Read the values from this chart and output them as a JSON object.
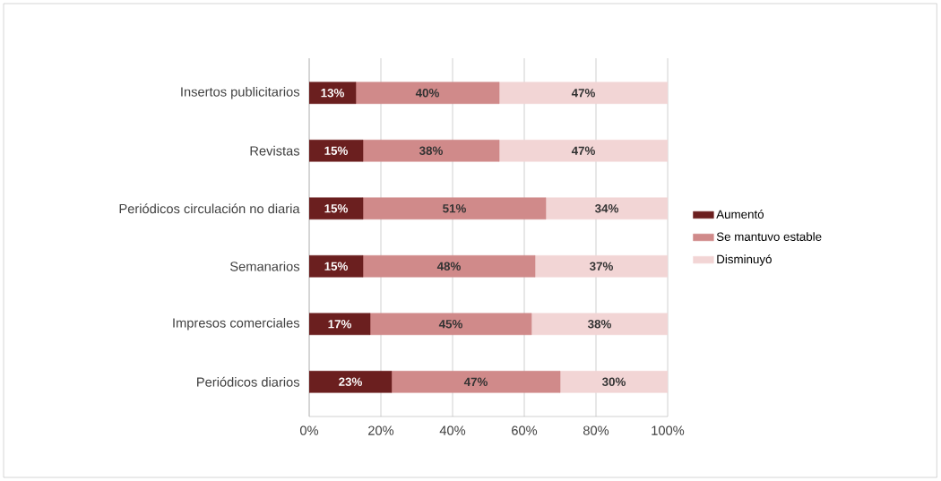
{
  "chart_data": {
    "type": "bar",
    "orientation": "horizontal",
    "stacked": true,
    "categories": [
      "Insertos publicitarios",
      "Revistas",
      "Periódicos circulación no diaria",
      "Semanarios",
      "Impresos comerciales",
      "Periódicos diarios"
    ],
    "series": [
      {
        "name": "Aumentó",
        "color": "#6b1f1f",
        "values": [
          13,
          15,
          15,
          15,
          17,
          23
        ],
        "value_labels": [
          "13%",
          "15%",
          "15%",
          "15%",
          "17%",
          "23%"
        ]
      },
      {
        "name": "Se mantuvo estable",
        "color": "#d08a8a",
        "values": [
          40,
          38,
          51,
          48,
          45,
          47
        ],
        "value_labels": [
          "40%",
          "38%",
          "51%",
          "48%",
          "45%",
          "47%"
        ]
      },
      {
        "name": "Disminuyó",
        "color": "#f2d5d5",
        "values": [
          47,
          47,
          34,
          37,
          38,
          30
        ],
        "value_labels": [
          "47%",
          "47%",
          "34%",
          "37%",
          "38%",
          "30%"
        ]
      }
    ],
    "xlim": [
      0,
      100
    ],
    "xticks": [
      {
        "value": 0,
        "label": "0%"
      },
      {
        "value": 20,
        "label": "20%"
      },
      {
        "value": 40,
        "label": "40%"
      },
      {
        "value": 60,
        "label": "60%"
      },
      {
        "value": 80,
        "label": "80%"
      },
      {
        "value": 100,
        "label": "100%"
      }
    ],
    "grid": "x",
    "legend": "right"
  }
}
